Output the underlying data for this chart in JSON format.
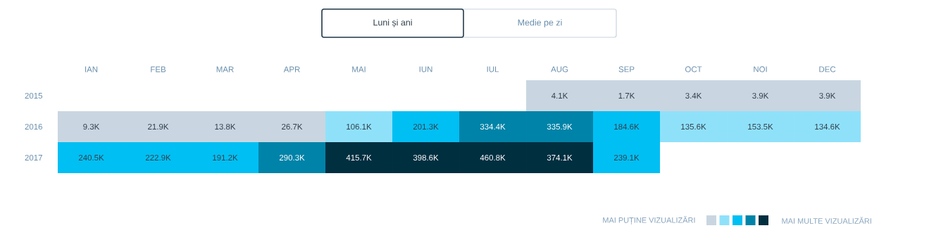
{
  "chart_data": {
    "type": "heatmap",
    "categories": [
      "IAN",
      "FEB",
      "MAR",
      "APR",
      "MAI",
      "IUN",
      "IUL",
      "AUG",
      "SEP",
      "OCT",
      "NOI",
      "DEC"
    ],
    "y_categories": [
      "2015",
      "2016",
      "2017"
    ],
    "cells": [
      [
        null,
        null,
        null,
        null,
        null,
        null,
        null,
        4.1,
        1.7,
        3.4,
        3.9,
        3.9
      ],
      [
        9.3,
        21.9,
        13.8,
        26.7,
        106.1,
        201.3,
        334.4,
        335.9,
        184.6,
        135.6,
        153.5,
        134.6
      ],
      [
        240.5,
        222.9,
        191.2,
        290.3,
        415.7,
        398.6,
        460.8,
        374.1,
        239.1,
        null,
        null,
        null
      ]
    ],
    "cell_labels": [
      [
        null,
        null,
        null,
        null,
        null,
        null,
        null,
        "4.1K",
        "1.7K",
        "3.4K",
        "3.9K",
        "3.9K"
      ],
      [
        "9.3K",
        "21.9K",
        "13.8K",
        "26.7K",
        "106.1K",
        "201.3K",
        "334.4K",
        "335.9K",
        "184.6K",
        "135.6K",
        "153.5K",
        "134.6K"
      ],
      [
        "240.5K",
        "222.9K",
        "191.2K",
        "290.3K",
        "415.7K",
        "398.6K",
        "460.8K",
        "374.1K",
        "239.1K",
        null,
        null,
        null
      ]
    ],
    "colors": [
      "#c9d6e1",
      "#8fe1fa",
      "#00bff3",
      "#0083a8",
      "#002f40"
    ],
    "annotations": [
      "Luni și ani",
      "Medie pe zi",
      "MAI PUȚINE VIZUALIZĂRI",
      "MAI MULTE VIZUALIZĂRI"
    ]
  }
}
